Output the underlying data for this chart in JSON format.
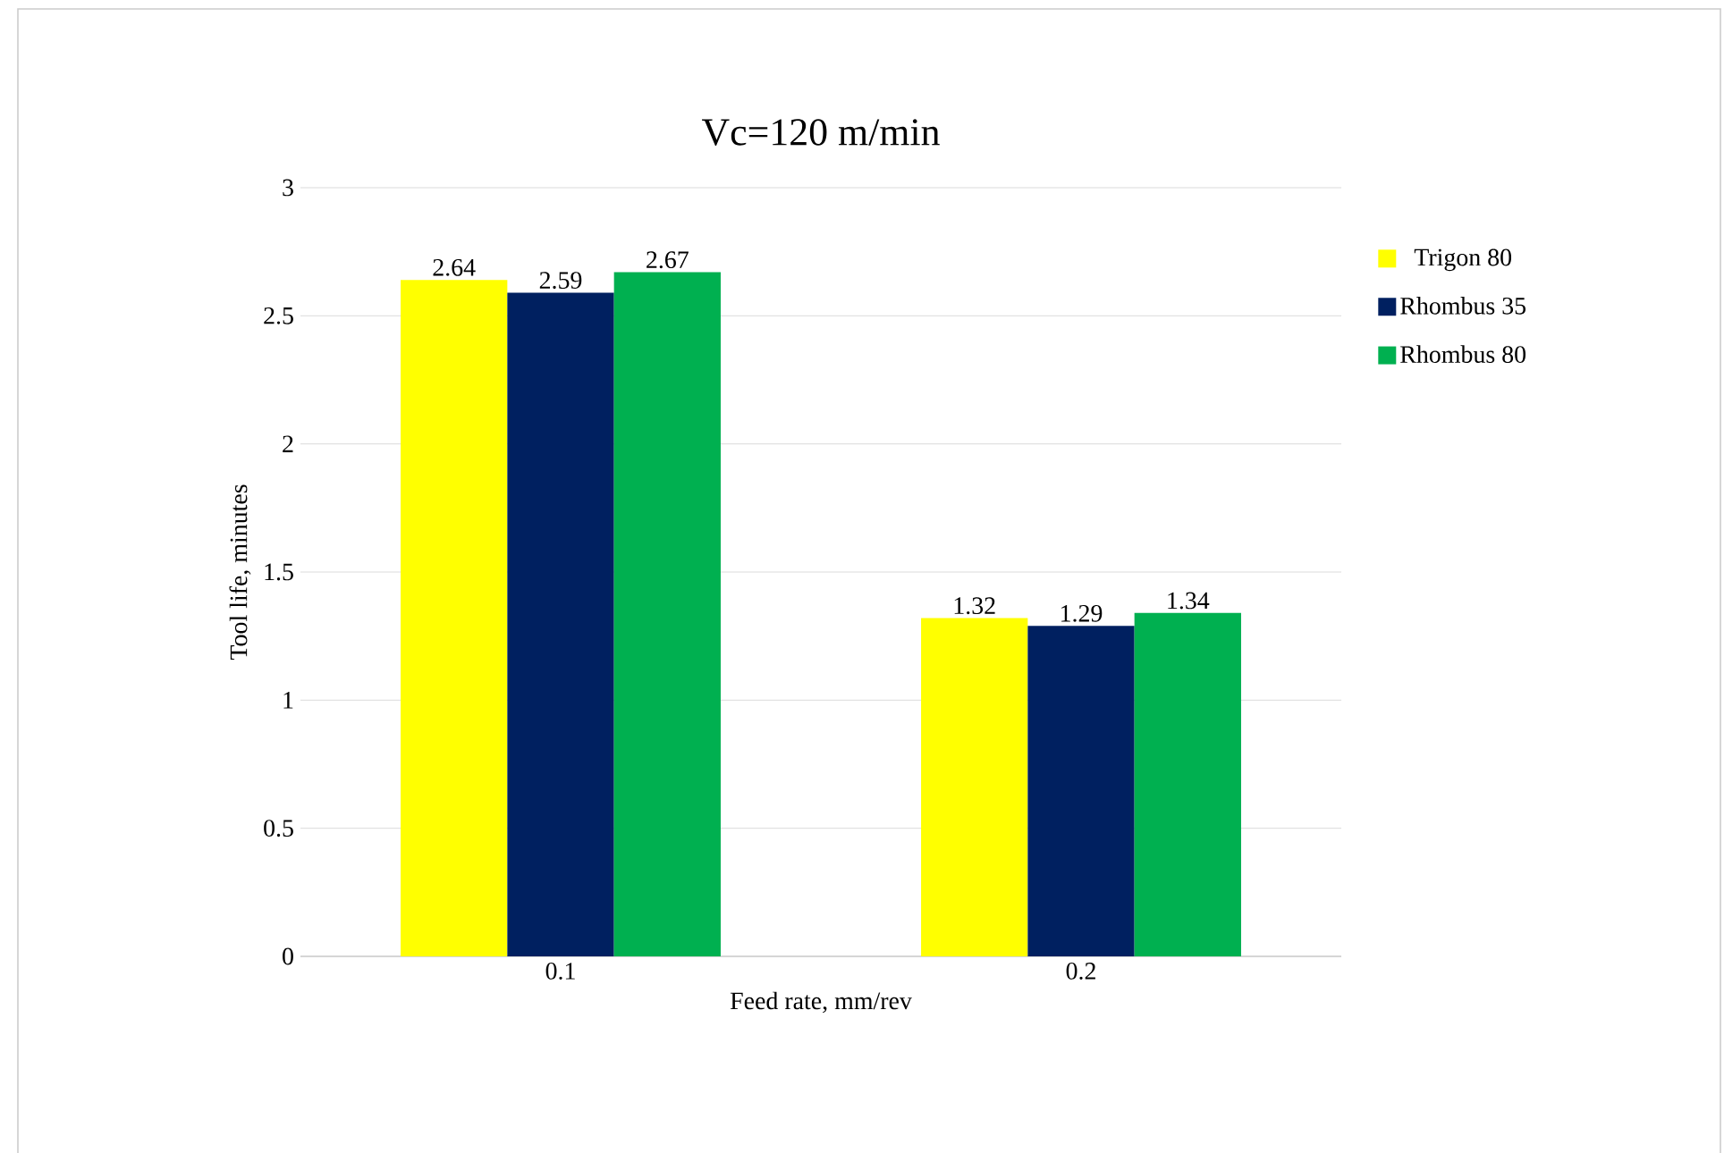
{
  "chart_data": {
    "type": "bar",
    "title": "Vc=120 m/min",
    "xlabel": "Feed rate, mm/rev",
    "ylabel": "Tool life, minutes",
    "categories": [
      "0.1",
      "0.2"
    ],
    "series": [
      {
        "name": "Trigon 80",
        "color": "#ffff00",
        "values": [
          2.64,
          1.32
        ]
      },
      {
        "name": "Rhombus 35",
        "color": "#002060",
        "values": [
          2.59,
          1.29
        ]
      },
      {
        "name": "Rhombus 80",
        "color": "#00b050",
        "values": [
          2.67,
          1.34
        ]
      }
    ],
    "ylim": [
      0,
      3
    ],
    "yticks": [
      0,
      0.5,
      1,
      1.5,
      2,
      2.5,
      3
    ],
    "grid": "y",
    "legend": "right",
    "data_labels": true
  }
}
